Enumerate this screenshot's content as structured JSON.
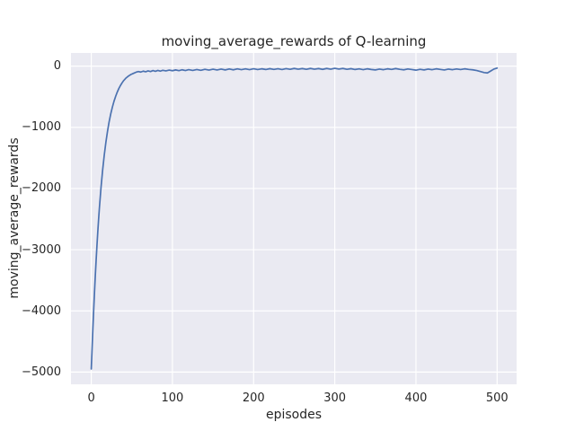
{
  "chart_data": {
    "type": "line",
    "title": "moving_average_rewards of Q-learning",
    "xlabel": "episodes",
    "ylabel": "moving_average_rewards",
    "xlim": [
      -25,
      524
    ],
    "ylim": [
      -5200,
      215
    ],
    "grid": true,
    "legend_position": "none",
    "colors": {
      "line": "#4c72b0",
      "axes_background": "#eaeaf2",
      "gridline": "#ffffff",
      "text": "#262626",
      "figure_background": "#ffffff"
    },
    "xticks": [
      {
        "v": 0,
        "label": "0"
      },
      {
        "v": 100,
        "label": "100"
      },
      {
        "v": 200,
        "label": "200"
      },
      {
        "v": 300,
        "label": "300"
      },
      {
        "v": 400,
        "label": "400"
      },
      {
        "v": 500,
        "label": "500"
      }
    ],
    "yticks": [
      {
        "v": 0,
        "label": "0"
      },
      {
        "v": -1000,
        "label": "−1000"
      },
      {
        "v": -2000,
        "label": "−2000"
      },
      {
        "v": -3000,
        "label": "−3000"
      },
      {
        "v": -4000,
        "label": "−4000"
      },
      {
        "v": -5000,
        "label": "−5000"
      }
    ],
    "series": [
      {
        "name": "moving_average_rewards",
        "color": "#4c72b0",
        "points": [
          [
            0,
            -4950
          ],
          [
            1,
            -4620
          ],
          [
            2,
            -4290
          ],
          [
            3,
            -3980
          ],
          [
            4,
            -3690
          ],
          [
            5,
            -3420
          ],
          [
            6,
            -3170
          ],
          [
            7,
            -2935
          ],
          [
            8,
            -2715
          ],
          [
            9,
            -2510
          ],
          [
            10,
            -2320
          ],
          [
            12,
            -1985
          ],
          [
            14,
            -1700
          ],
          [
            16,
            -1455
          ],
          [
            18,
            -1245
          ],
          [
            20,
            -1065
          ],
          [
            22,
            -910
          ],
          [
            24,
            -780
          ],
          [
            26,
            -670
          ],
          [
            28,
            -575
          ],
          [
            30,
            -495
          ],
          [
            32,
            -425
          ],
          [
            34,
            -365
          ],
          [
            36,
            -315
          ],
          [
            38,
            -272
          ],
          [
            40,
            -235
          ],
          [
            43,
            -192
          ],
          [
            46,
            -160
          ],
          [
            49,
            -135
          ],
          [
            52,
            -118
          ],
          [
            55,
            -100
          ],
          [
            58,
            -88
          ],
          [
            61,
            -97
          ],
          [
            64,
            -82
          ],
          [
            67,
            -92
          ],
          [
            70,
            -78
          ],
          [
            73,
            -88
          ],
          [
            76,
            -72
          ],
          [
            79,
            -85
          ],
          [
            82,
            -70
          ],
          [
            85,
            -82
          ],
          [
            88,
            -68
          ],
          [
            92,
            -78
          ],
          [
            96,
            -65
          ],
          [
            100,
            -75
          ],
          [
            104,
            -62
          ],
          [
            108,
            -74
          ],
          [
            112,
            -60
          ],
          [
            116,
            -72
          ],
          [
            120,
            -58
          ],
          [
            125,
            -70
          ],
          [
            130,
            -55
          ],
          [
            135,
            -68
          ],
          [
            140,
            -52
          ],
          [
            145,
            -65
          ],
          [
            150,
            -50
          ],
          [
            155,
            -63
          ],
          [
            160,
            -48
          ],
          [
            165,
            -62
          ],
          [
            170,
            -47
          ],
          [
            175,
            -60
          ],
          [
            180,
            -45
          ],
          [
            185,
            -58
          ],
          [
            190,
            -44
          ],
          [
            195,
            -57
          ],
          [
            200,
            -43
          ],
          [
            205,
            -56
          ],
          [
            210,
            -44
          ],
          [
            215,
            -55
          ],
          [
            220,
            -42
          ],
          [
            225,
            -54
          ],
          [
            230,
            -43
          ],
          [
            235,
            -55
          ],
          [
            240,
            -41
          ],
          [
            245,
            -52
          ],
          [
            250,
            -38
          ],
          [
            255,
            -50
          ],
          [
            260,
            -40
          ],
          [
            265,
            -52
          ],
          [
            270,
            -38
          ],
          [
            275,
            -50
          ],
          [
            280,
            -40
          ],
          [
            285,
            -53
          ],
          [
            290,
            -38
          ],
          [
            295,
            -50
          ],
          [
            300,
            -36
          ],
          [
            305,
            -48
          ],
          [
            310,
            -38
          ],
          [
            315,
            -52
          ],
          [
            320,
            -42
          ],
          [
            325,
            -55
          ],
          [
            330,
            -45
          ],
          [
            335,
            -58
          ],
          [
            340,
            -44
          ],
          [
            345,
            -55
          ],
          [
            350,
            -62
          ],
          [
            355,
            -48
          ],
          [
            360,
            -58
          ],
          [
            365,
            -44
          ],
          [
            370,
            -54
          ],
          [
            375,
            -40
          ],
          [
            380,
            -52
          ],
          [
            385,
            -60
          ],
          [
            390,
            -46
          ],
          [
            395,
            -56
          ],
          [
            400,
            -66
          ],
          [
            405,
            -52
          ],
          [
            410,
            -62
          ],
          [
            415,
            -48
          ],
          [
            420,
            -58
          ],
          [
            425,
            -44
          ],
          [
            430,
            -54
          ],
          [
            435,
            -63
          ],
          [
            440,
            -48
          ],
          [
            445,
            -58
          ],
          [
            450,
            -46
          ],
          [
            455,
            -56
          ],
          [
            460,
            -44
          ],
          [
            465,
            -54
          ],
          [
            470,
            -60
          ],
          [
            475,
            -72
          ],
          [
            480,
            -90
          ],
          [
            484,
            -105
          ],
          [
            488,
            -112
          ],
          [
            492,
            -80
          ],
          [
            496,
            -48
          ],
          [
            500,
            -32
          ]
        ]
      }
    ]
  }
}
